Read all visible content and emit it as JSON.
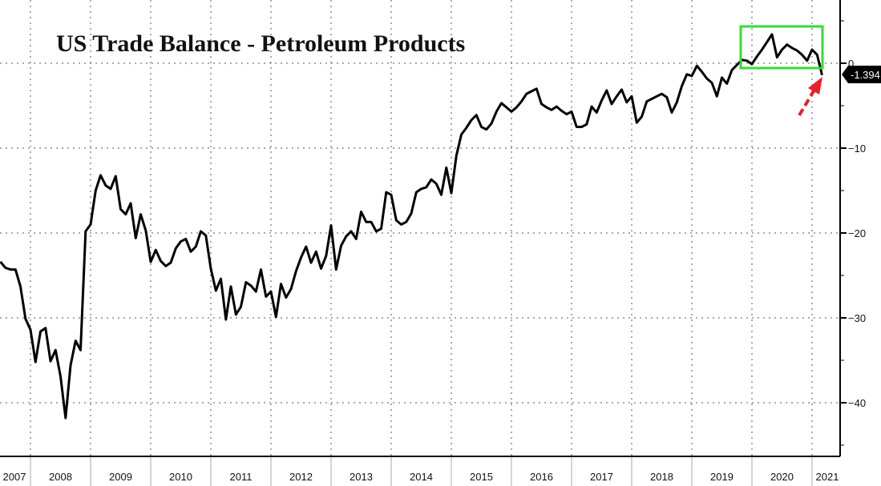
{
  "chart_data": {
    "type": "line",
    "title": "US Trade Balance - Petroleum Products",
    "xlabel": "",
    "ylabel": "",
    "ylim": [
      -46,
      7.5
    ],
    "y_ticks": [
      0,
      -10,
      -20,
      -30,
      -40
    ],
    "x_tick_labels": [
      "2007",
      "2008",
      "2009",
      "2010",
      "2011",
      "2012",
      "2013",
      "2014",
      "2015",
      "2016",
      "2017",
      "2018",
      "2019",
      "2020",
      "2021"
    ],
    "grid": true,
    "y_axis_side": "right",
    "line_color": "#000000",
    "last_value_label": "-1.394",
    "highlight_box_color": "#33dd33",
    "arrow_color": "#e8202a",
    "dates": [
      "2007-07",
      "2007-08",
      "2007-09",
      "2007-10",
      "2007-11",
      "2007-12",
      "2008-01",
      "2008-02",
      "2008-03",
      "2008-04",
      "2008-05",
      "2008-06",
      "2008-07",
      "2008-08",
      "2008-09",
      "2008-10",
      "2008-11",
      "2008-12",
      "2009-01",
      "2009-02",
      "2009-03",
      "2009-04",
      "2009-05",
      "2009-06",
      "2009-07",
      "2009-08",
      "2009-09",
      "2009-10",
      "2009-11",
      "2009-12",
      "2010-01",
      "2010-02",
      "2010-03",
      "2010-04",
      "2010-05",
      "2010-06",
      "2010-07",
      "2010-08",
      "2010-09",
      "2010-10",
      "2010-11",
      "2010-12",
      "2011-01",
      "2011-02",
      "2011-03",
      "2011-04",
      "2011-05",
      "2011-06",
      "2011-07",
      "2011-08",
      "2011-09",
      "2011-10",
      "2011-11",
      "2011-12",
      "2012-01",
      "2012-02",
      "2012-03",
      "2012-04",
      "2012-05",
      "2012-06",
      "2012-07",
      "2012-08",
      "2012-09",
      "2012-10",
      "2012-11",
      "2012-12",
      "2013-01",
      "2013-02",
      "2013-03",
      "2013-04",
      "2013-05",
      "2013-06",
      "2013-07",
      "2013-08",
      "2013-09",
      "2013-10",
      "2013-11",
      "2013-12",
      "2014-01",
      "2014-02",
      "2014-03",
      "2014-04",
      "2014-05",
      "2014-06",
      "2014-07",
      "2014-08",
      "2014-09",
      "2014-10",
      "2014-11",
      "2014-12",
      "2015-01",
      "2015-02",
      "2015-03",
      "2015-04",
      "2015-05",
      "2015-06",
      "2015-07",
      "2015-08",
      "2015-09",
      "2015-10",
      "2015-11",
      "2015-12",
      "2016-01",
      "2016-02",
      "2016-03",
      "2016-04",
      "2016-05",
      "2016-06",
      "2016-07",
      "2016-08",
      "2016-09",
      "2016-10",
      "2016-11",
      "2016-12",
      "2017-01",
      "2017-02",
      "2017-03",
      "2017-04",
      "2017-05",
      "2017-06",
      "2017-07",
      "2017-08",
      "2017-09",
      "2017-10",
      "2017-11",
      "2017-12",
      "2018-01",
      "2018-02",
      "2018-03",
      "2018-04",
      "2018-05",
      "2018-06",
      "2018-07",
      "2018-08",
      "2018-09",
      "2018-10",
      "2018-11",
      "2018-12",
      "2019-01",
      "2019-02",
      "2019-03",
      "2019-04",
      "2019-05",
      "2019-06",
      "2019-07",
      "2019-08",
      "2019-09",
      "2019-10",
      "2019-11",
      "2019-12",
      "2020-01",
      "2020-02",
      "2020-03",
      "2020-04",
      "2020-05",
      "2020-06",
      "2020-07",
      "2020-08",
      "2020-09",
      "2020-10",
      "2020-11",
      "2020-12",
      "2021-01",
      "2021-02",
      "2021-03"
    ],
    "values": [
      -23.4,
      -24.1,
      -24.3,
      -24.3,
      -26.3,
      -30.1,
      -31.4,
      -35.2,
      -31.6,
      -31.2,
      -35.1,
      -33.8,
      -36.9,
      -41.8,
      -35.6,
      -32.7,
      -33.8,
      -19.8,
      -19.0,
      -15.0,
      -13.2,
      -14.4,
      -14.8,
      -13.3,
      -17.2,
      -17.8,
      -16.5,
      -20.6,
      -17.8,
      -19.7,
      -23.4,
      -22.0,
      -23.3,
      -23.9,
      -23.5,
      -21.8,
      -21.0,
      -20.7,
      -22.2,
      -21.6,
      -19.8,
      -20.3,
      -24.2,
      -26.8,
      -25.4,
      -30.2,
      -26.3,
      -29.6,
      -28.7,
      -25.8,
      -26.2,
      -26.9,
      -24.3,
      -27.5,
      -26.9,
      -29.9,
      -26.0,
      -27.6,
      -26.6,
      -24.5,
      -22.9,
      -21.6,
      -23.5,
      -22.2,
      -24.2,
      -22.7,
      -19.1,
      -24.3,
      -21.5,
      -20.4,
      -19.8,
      -20.7,
      -17.5,
      -18.7,
      -18.7,
      -19.8,
      -19.5,
      -15.2,
      -15.5,
      -18.5,
      -19.0,
      -18.7,
      -17.7,
      -15.2,
      -14.8,
      -14.6,
      -13.7,
      -14.2,
      -15.5,
      -12.3,
      -15.3,
      -10.9,
      -8.4,
      -7.6,
      -6.7,
      -6.1,
      -7.5,
      -7.8,
      -7.1,
      -5.7,
      -4.7,
      -5.2,
      -5.7,
      -5.2,
      -4.5,
      -3.6,
      -3.3,
      -3.0,
      -4.8,
      -5.2,
      -5.5,
      -5.1,
      -5.6,
      -6.0,
      -5.7,
      -7.5,
      -7.5,
      -7.2,
      -5.1,
      -5.8,
      -4.4,
      -3.2,
      -4.8,
      -3.9,
      -3.1,
      -4.6,
      -3.9,
      -7.0,
      -6.3,
      -4.5,
      -4.2,
      -3.9,
      -3.6,
      -4.0,
      -5.8,
      -4.6,
      -2.7,
      -1.3,
      -1.5,
      -0.3,
      -1.0,
      -1.8,
      -2.3,
      -3.9,
      -1.7,
      -2.4,
      -0.8,
      -0.2,
      0.4,
      0.3,
      -0.1,
      0.8,
      1.6,
      2.5,
      3.4,
      0.7,
      1.6,
      2.2,
      1.8,
      1.5,
      1.0,
      0.3,
      1.6,
      1.0,
      -1.394
    ]
  }
}
